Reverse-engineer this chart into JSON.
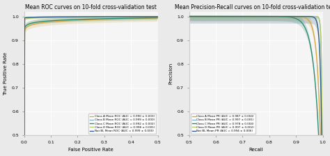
{
  "roc_title": "Mean ROC curves on 10-fold cross-validation test",
  "pr_title": "Mean Precision-Recall curves on 10-fold cross-validation test",
  "roc_xlabel": "False Positive Rate",
  "roc_ylabel": "True Positive Rate",
  "pr_xlabel": "Recall",
  "pr_ylabel": "Precision",
  "colors": [
    "#d4a843",
    "#7ab8d4",
    "#2e8b72",
    "#b8c96a",
    "#2c5f8a"
  ],
  "roc_legend": [
    "Class A Mean ROC (AUC = 0.990 ± 0.003)",
    "Class B Mean ROC (AUC = 0.999 ± 0.000)",
    "Class C Mean ROC (AUC = 0.992 ± 0.002)",
    "Class D Mean ROC (AUC = 0.998 ± 0.001)",
    "Not BL Mean ROC (AUC = 0.999 ± 0.000)"
  ],
  "pr_legend": [
    "Class A Mean PR (AUC = 0.987 ± 0.004)",
    "Class B Mean PR (AUC = 0.997 ± 0.001)",
    "Class C Mean PR (AUC = 0.978 ± 0.004)",
    "Class D Mean PR (AUC = 0.997 ± 0.002)",
    "Not BL Mean PR (AUC = 0.994 ± 0.006)"
  ],
  "roc_xlim": [
    0.0,
    0.5
  ],
  "roc_ylim": [
    0.5,
    1.02
  ],
  "pr_xlim": [
    0.5,
    1.0
  ],
  "pr_ylim": [
    0.5,
    1.02
  ],
  "roc_xticks": [
    0.0,
    0.1,
    0.2,
    0.3,
    0.4,
    0.5
  ],
  "roc_yticks": [
    0.5,
    0.6,
    0.7,
    0.8,
    0.9,
    1.0
  ],
  "pr_xticks": [
    0.5,
    0.6,
    0.7,
    0.8,
    0.9,
    1.0
  ],
  "pr_yticks": [
    0.5,
    0.6,
    0.7,
    0.8,
    0.9,
    1.0
  ],
  "roc_aucs": [
    0.99,
    0.999,
    0.992,
    0.998,
    0.999
  ],
  "pr_aucs": [
    0.987,
    0.997,
    0.978,
    0.997,
    0.994
  ],
  "stds_roc": [
    0.003,
    0.0,
    0.002,
    0.001,
    0.0
  ],
  "stds_pr": [
    0.004,
    0.001,
    0.004,
    0.002,
    0.006
  ],
  "bg_color": "#eaeaea",
  "plot_bg": "#f5f5f5",
  "title_fontsize": 5.5,
  "label_fontsize": 5.0,
  "tick_fontsize": 4.5,
  "legend_fontsize": 3.0,
  "lw": 1.0,
  "alpha_fill": 0.2
}
